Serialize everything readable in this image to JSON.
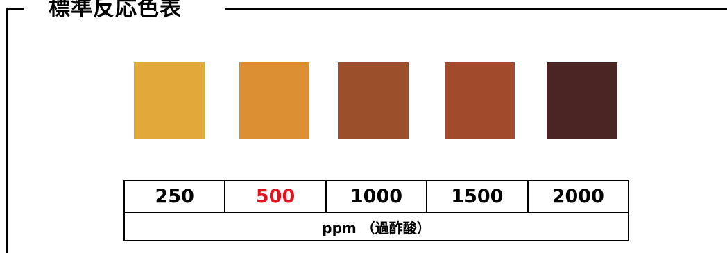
{
  "title": "標準反応色表",
  "swatches": [
    {
      "label": "250",
      "color": "#e0a93a"
    },
    {
      "label": "500",
      "color": "#dc8e33"
    },
    {
      "label": "1000",
      "color": "#9b4f2a"
    },
    {
      "label": "1500",
      "color": "#a14a2c"
    },
    {
      "label": "2000",
      "color": "#4b2424"
    }
  ],
  "legend": {
    "values": [
      "250",
      "500",
      "1000",
      "1500",
      "2000"
    ],
    "highlight_color": "#e0141e",
    "unit": "ppm （過酢酸）"
  }
}
